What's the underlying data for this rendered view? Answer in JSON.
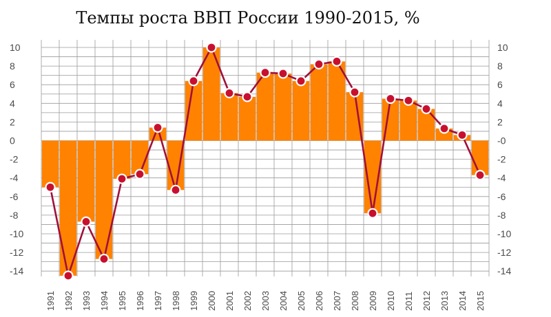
{
  "chart_data": {
    "type": "bar",
    "title": "Темпы роста ВВП России 1990-2015, %",
    "xlabel": "",
    "ylabel": "",
    "ylim": [
      -15,
      10
    ],
    "grid": true,
    "y_ticks_left": [
      "10",
      "8",
      "6",
      "4",
      "2",
      "0",
      "-2",
      "-4",
      "-6",
      "-8",
      "-10",
      "-12",
      "-14"
    ],
    "y_ticks_right": [
      "10",
      "8",
      "6",
      "4",
      "2",
      "-0",
      "-2",
      "-4",
      "-6",
      "-8",
      "-10",
      "-12",
      "-14"
    ],
    "y_tick_values": [
      10,
      8,
      6,
      4,
      2,
      0,
      -2,
      -4,
      -6,
      -8,
      -10,
      -12,
      -14
    ],
    "categories": [
      "1991",
      "1992",
      "1993",
      "1994",
      "1995",
      "1996",
      "1997",
      "1998",
      "1999",
      "2000",
      "2001",
      "2002",
      "2003",
      "2004",
      "2005",
      "2006",
      "2007",
      "2008",
      "2009",
      "2010",
      "2011",
      "2012",
      "2013",
      "2014",
      "2015"
    ],
    "values": [
      -5.0,
      -14.5,
      -8.7,
      -12.7,
      -4.1,
      -3.6,
      1.4,
      -5.3,
      6.4,
      10.0,
      5.1,
      4.7,
      7.3,
      7.2,
      6.4,
      8.2,
      8.5,
      5.2,
      -7.8,
      4.5,
      4.3,
      3.4,
      1.3,
      0.6,
      -3.7
    ],
    "colors": {
      "bar": "#ff8200",
      "line": "#a0103a",
      "marker_fill": "#c8102e",
      "grid": "#9a9a9a"
    }
  }
}
